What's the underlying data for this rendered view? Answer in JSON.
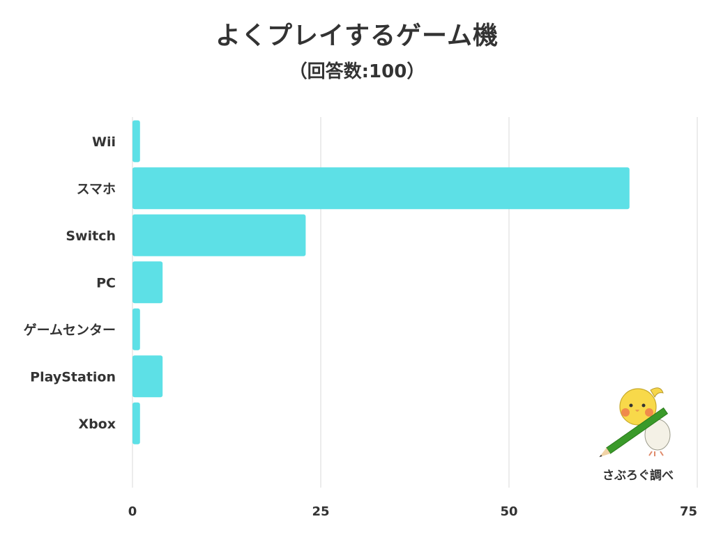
{
  "title": "よくプレイするゲーム機",
  "subtitle": "（回答数:100）",
  "credit": "さぶろぐ調べ",
  "colors": {
    "bar": "#5de0e6",
    "grid": "#d9d9d9",
    "text": "#333333"
  },
  "chart_data": {
    "type": "bar",
    "orientation": "horizontal",
    "title": "よくプレイするゲーム機",
    "subtitle": "（回答数:100）",
    "categories": [
      "Wii",
      "スマホ",
      "Switch",
      "PC",
      "ゲームセンター",
      "PlayStation",
      "Xbox"
    ],
    "values": [
      1,
      66,
      23,
      4,
      1,
      4,
      1
    ],
    "xlim": [
      0,
      75
    ],
    "xticks": [
      0,
      25,
      50,
      75
    ],
    "grid": true,
    "legend": "none"
  },
  "mascot": {
    "icon": "bird-with-pencil-icon"
  }
}
